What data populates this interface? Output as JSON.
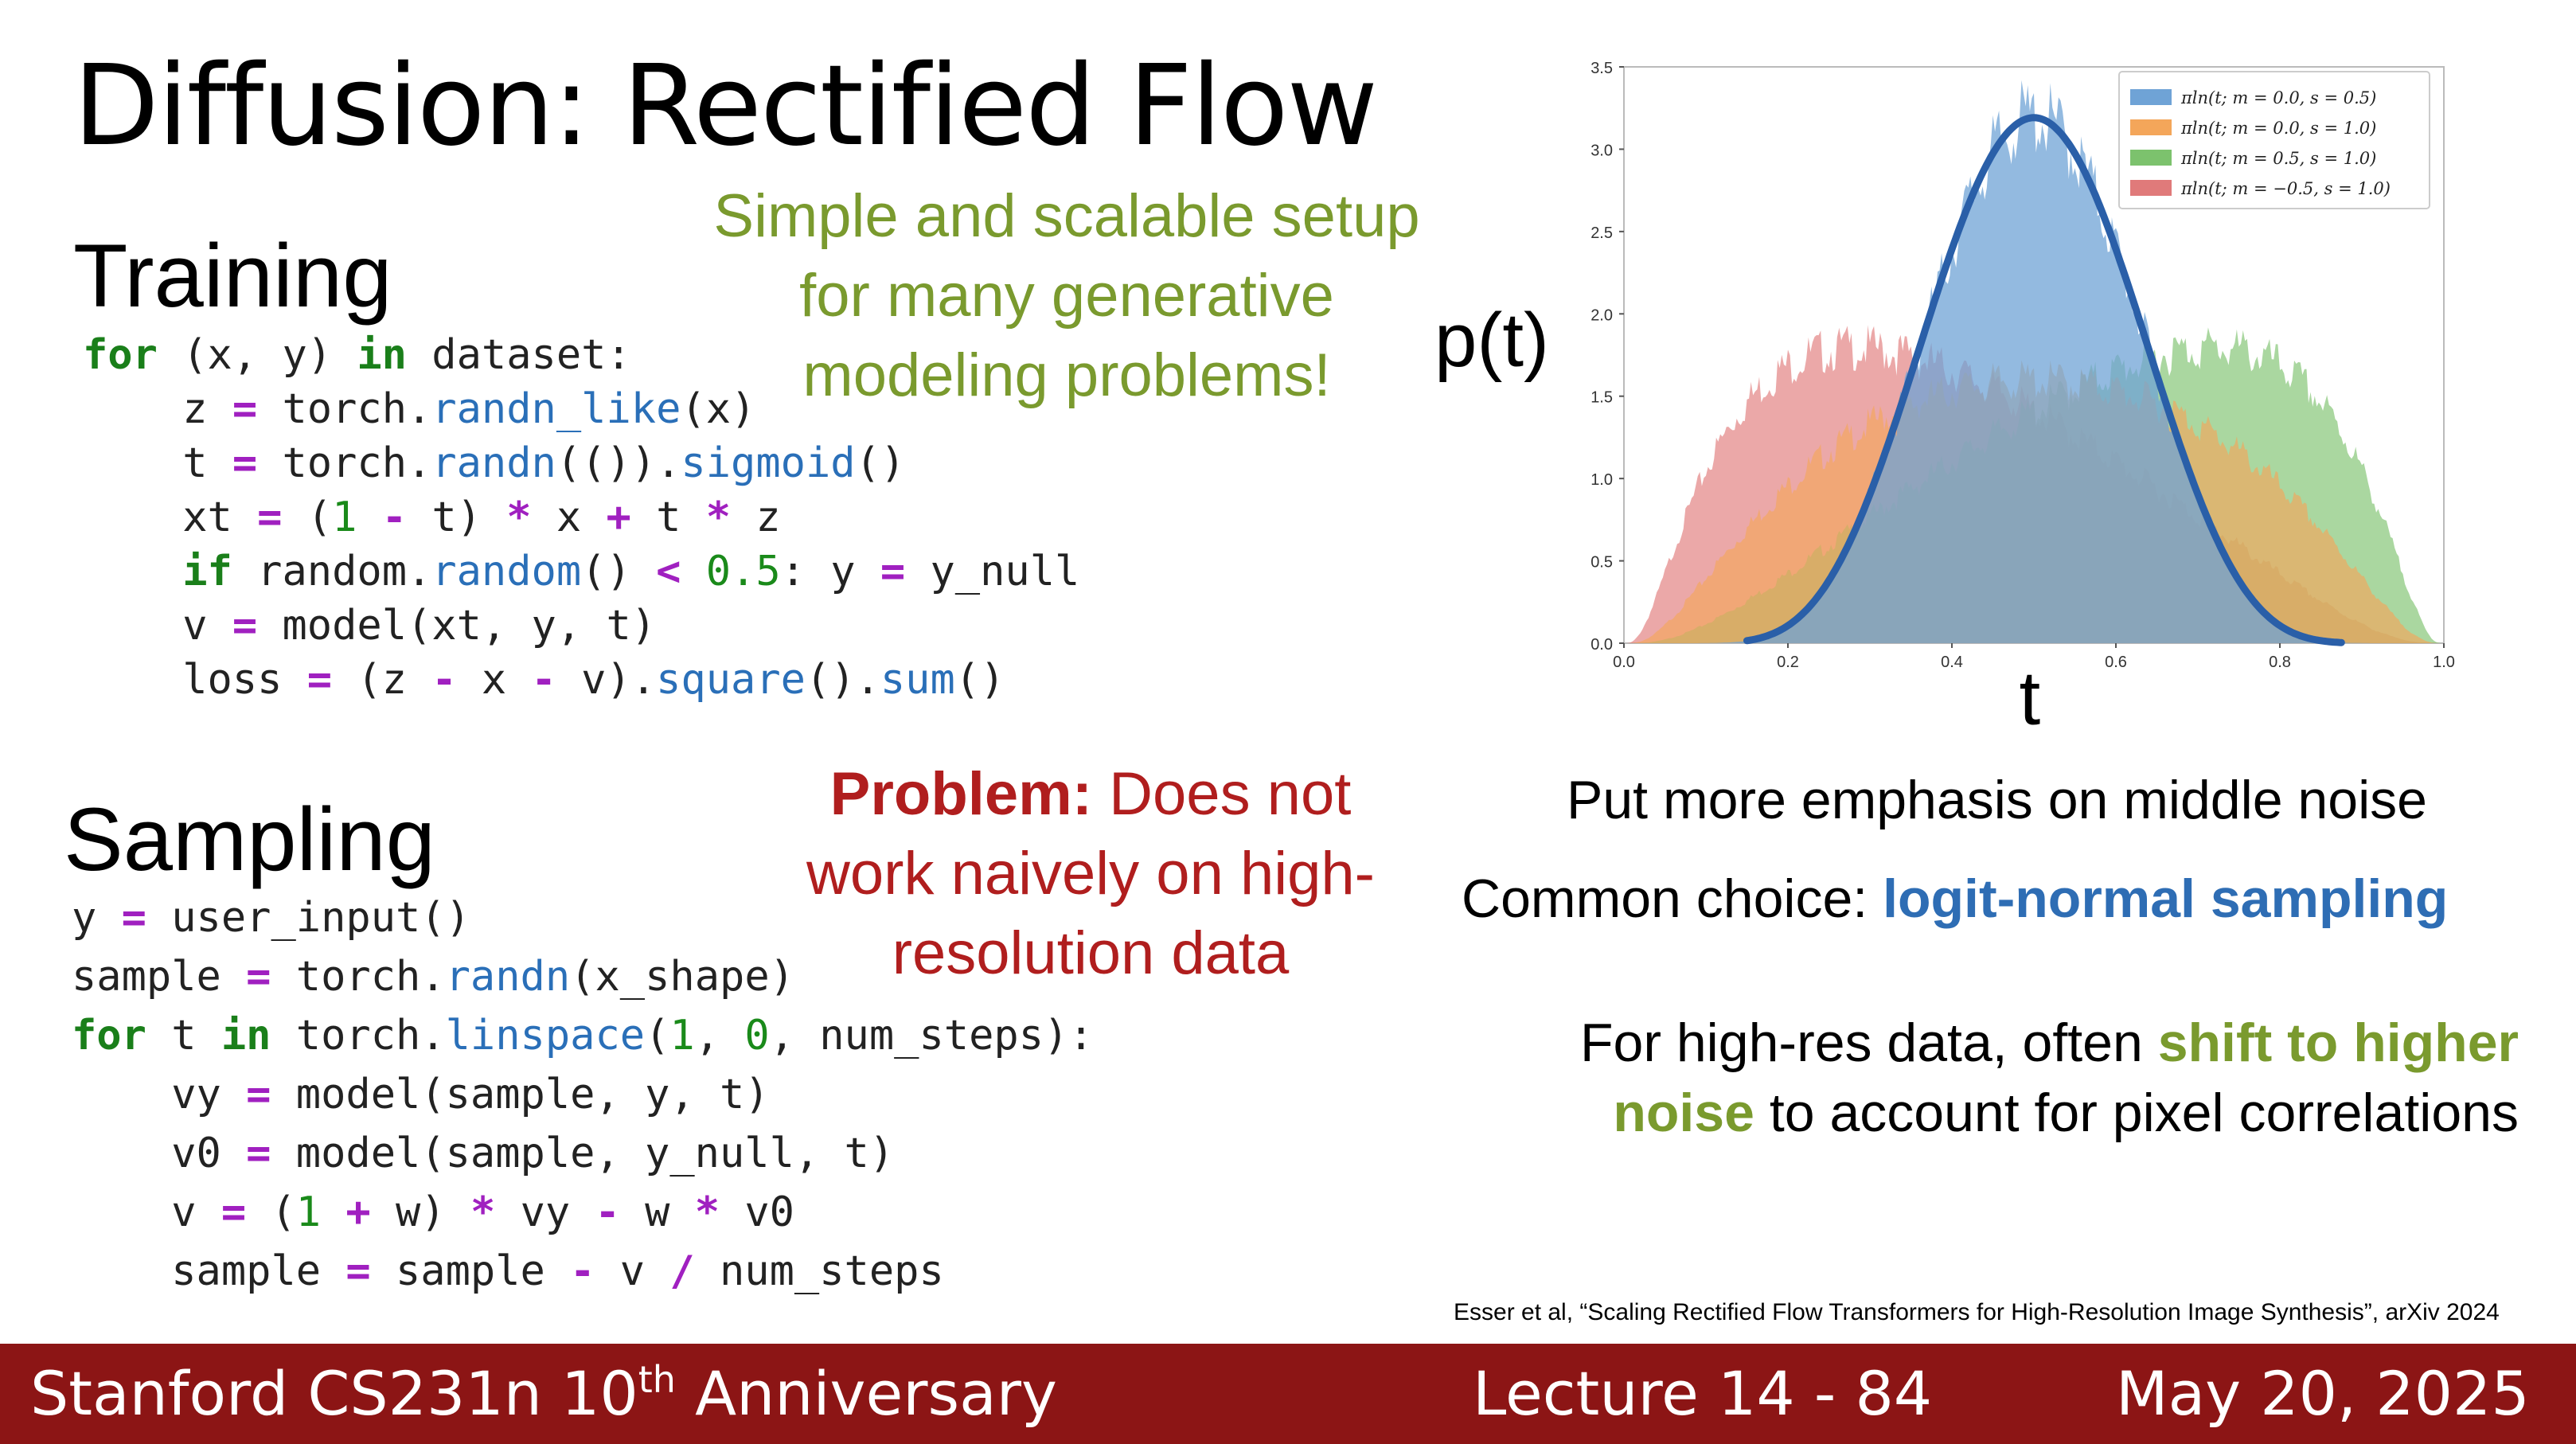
{
  "slide": {
    "title": "Diffusion: Rectified Flow",
    "training_heading": "Training",
    "sampling_heading": "Sampling",
    "green_note": [
      "Simple and scalable setup",
      "for many generative",
      "modeling problems!"
    ],
    "problem_label": "Problem:",
    "problem_rest_1": " Does not",
    "problem_line_2": "work naively on high-",
    "problem_line_3": "resolution data",
    "emphasis_text": "Put more emphasis on middle noise",
    "common_choice_prefix": "Common choice: ",
    "common_choice_highlight": "logit-normal sampling",
    "highres_prefix": "For high-res data, often ",
    "highres_highlight_1": "shift to higher",
    "highres_highlight_2": "noise",
    "highres_suffix": " to account for pixel correlations",
    "citation": "Esser et al, “Scaling Rectified Flow Transformers for High-Resolution Image Synthesis”, arXiv 2024"
  },
  "training_code": [
    "for (x, y) in dataset:",
    "    z = torch.randn_like(x)",
    "    t = torch.randn(()).sigmoid()",
    "    xt = (1 - t) * x + t * z",
    "    if random.random() < 0.5: y = y_null",
    "    v = model(xt, y, t)",
    "    loss = (z - x - v).square().sum()"
  ],
  "sampling_code": [
    "y = user_input()",
    "sample = torch.randn(x_shape)",
    "for t in torch.linspace(1, 0, num_steps):",
    "    vy = model(sample, y, t)",
    "    v0 = model(sample, y_null, t)",
    "    v = (1 + w) * vy - w * v0",
    "    sample = sample - v / num_steps"
  ],
  "footer": {
    "course_pre": "Stanford CS231n 10",
    "course_sup": "th",
    "course_post": " Anniversary",
    "lecture": "Lecture 14 -  84",
    "date": "May 20, 2025"
  },
  "chart_data": {
    "type": "area",
    "xlabel": "t",
    "ylabel": "p(t)",
    "xlim": [
      0.0,
      1.0
    ],
    "ylim": [
      0.0,
      3.5
    ],
    "x_ticks": [
      "0.0",
      "0.2",
      "0.4",
      "0.6",
      "0.8",
      "1.0"
    ],
    "y_ticks": [
      "0.0",
      "0.5",
      "1.0",
      "1.5",
      "2.0",
      "2.5",
      "3.0",
      "3.5"
    ],
    "legend_position": "top-right",
    "series": [
      {
        "name": "πln(t; m = 0.0, s = 0.5)",
        "m": 0.0,
        "s": 0.5,
        "color": "#6fa3d6",
        "peak": 3.17
      },
      {
        "name": "πln(t; m = 0.0, s = 1.0)",
        "m": 0.0,
        "s": 1.0,
        "color": "#f4a65a",
        "peak": 1.6
      },
      {
        "name": "πln(t; m = 0.5, s = 1.0)",
        "m": 0.5,
        "s": 1.0,
        "color": "#7cc26d",
        "peak": 1.85
      },
      {
        "name": "πln(t; m = −0.5, s = 1.0)",
        "m": -0.5,
        "s": 1.0,
        "color": "#e07a7a",
        "peak": 1.85
      }
    ],
    "highlighted_series": "πln(t; m = 0.0, s = 0.5)"
  }
}
